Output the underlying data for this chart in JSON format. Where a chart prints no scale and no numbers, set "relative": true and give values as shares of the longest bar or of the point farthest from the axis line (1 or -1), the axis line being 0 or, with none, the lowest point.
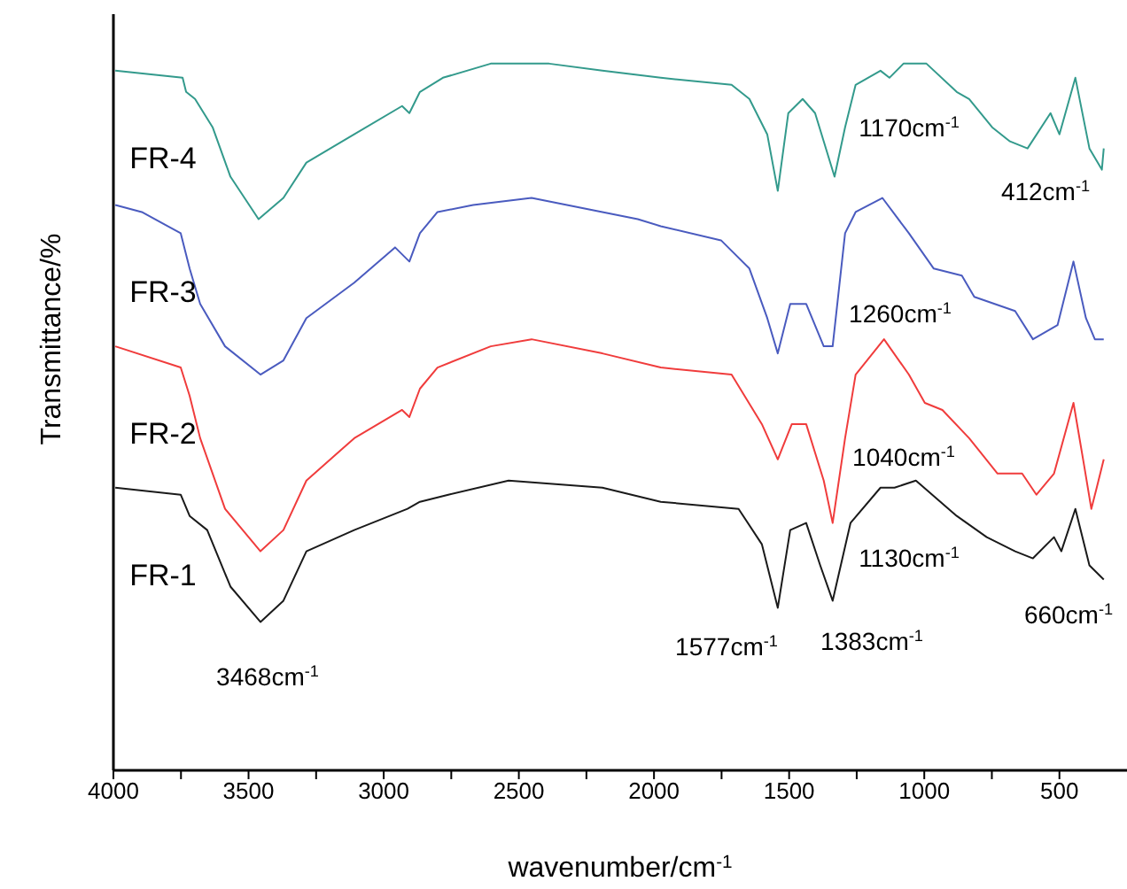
{
  "chart_data": {
    "type": "line",
    "relative": true,
    "xlabel": "wavenumber/cm$^{-1}$",
    "ylabel": "Transmittance/%",
    "xlim": [
      4000,
      250
    ],
    "xticks": [
      4000,
      {
        "value": 3750,
        "label": null
      },
      3500,
      {
        "value": 3250,
        "label": null
      },
      3000,
      {
        "value": 2750,
        "label": null
      },
      2500,
      {
        "value": 2250,
        "label": null
      },
      2000,
      {
        "value": 1750,
        "label": null
      },
      1500,
      {
        "value": 1250,
        "label": null
      },
      1000,
      {
        "value": 750,
        "label": null
      },
      500
    ],
    "series": [
      {
        "name": "FR-4",
        "color": "#339a8c",
        "x": [
          3993,
          3744,
          3731,
          3698,
          3633,
          3567,
          3463,
          3371,
          3286,
          3109,
          2932,
          2905,
          2866,
          2781,
          2604,
          2388,
          2191,
          1975,
          1713,
          1647,
          1581,
          1542,
          1503,
          1450,
          1404,
          1332,
          1293,
          1254,
          1162,
          1129,
          1077,
          992,
          880,
          834,
          749,
          683,
          618,
          533,
          500,
          441,
          389,
          343,
          336
        ],
        "values": [
          0.99,
          0.98,
          0.96,
          0.95,
          0.91,
          0.84,
          0.78,
          0.81,
          0.86,
          0.9,
          0.94,
          0.93,
          0.96,
          0.98,
          1.0,
          1.0,
          0.99,
          0.98,
          0.97,
          0.95,
          0.9,
          0.82,
          0.93,
          0.95,
          0.93,
          0.84,
          0.91,
          0.97,
          0.99,
          0.98,
          1.0,
          1.0,
          0.96,
          0.95,
          0.91,
          0.89,
          0.88,
          0.93,
          0.9,
          0.98,
          0.88,
          0.85,
          0.88
        ]
      },
      {
        "name": "FR-3",
        "color": "#4a5bbf",
        "x": [
          3993,
          3895,
          3751,
          3718,
          3679,
          3587,
          3456,
          3371,
          3286,
          3109,
          2958,
          2905,
          2866,
          2801,
          2669,
          2453,
          2191,
          2060,
          1975,
          1752,
          1647,
          1581,
          1542,
          1496,
          1437,
          1372,
          1339,
          1293,
          1254,
          1155,
          1057,
          965,
          861,
          815,
          664,
          598,
          507,
          448,
          402,
          369,
          336
        ],
        "values": [
          0.8,
          0.79,
          0.76,
          0.71,
          0.66,
          0.6,
          0.56,
          0.58,
          0.64,
          0.69,
          0.74,
          0.72,
          0.76,
          0.79,
          0.8,
          0.81,
          0.79,
          0.78,
          0.77,
          0.75,
          0.71,
          0.64,
          0.59,
          0.66,
          0.66,
          0.6,
          0.6,
          0.76,
          0.79,
          0.81,
          0.76,
          0.71,
          0.7,
          0.67,
          0.65,
          0.61,
          0.63,
          0.72,
          0.64,
          0.61,
          0.61
        ]
      },
      {
        "name": "FR-2",
        "color": "#f03c3c",
        "x": [
          3993,
          3751,
          3718,
          3679,
          3587,
          3456,
          3371,
          3286,
          3109,
          2932,
          2905,
          2866,
          2801,
          2604,
          2453,
          2191,
          1975,
          1713,
          1601,
          1542,
          1490,
          1437,
          1372,
          1339,
          1293,
          1254,
          1149,
          1057,
          998,
          933,
          834,
          729,
          638,
          585,
          520,
          448,
          408,
          382,
          362,
          336
        ],
        "values": [
          0.6,
          0.57,
          0.53,
          0.47,
          0.37,
          0.31,
          0.34,
          0.41,
          0.47,
          0.51,
          0.5,
          0.54,
          0.57,
          0.6,
          0.61,
          0.59,
          0.57,
          0.56,
          0.49,
          0.44,
          0.49,
          0.49,
          0.41,
          0.35,
          0.47,
          0.56,
          0.61,
          0.56,
          0.52,
          0.51,
          0.47,
          0.42,
          0.42,
          0.39,
          0.42,
          0.52,
          0.43,
          0.37,
          0.4,
          0.44
        ]
      },
      {
        "name": "FR-1",
        "color": "#1a1a1a",
        "x": [
          3993,
          3751,
          3718,
          3653,
          3567,
          3456,
          3371,
          3286,
          3109,
          2912,
          2866,
          2761,
          2538,
          2191,
          1975,
          1687,
          1601,
          1542,
          1496,
          1437,
          1385,
          1339,
          1273,
          1162,
          1110,
          1031,
          880,
          769,
          664,
          598,
          520,
          493,
          441,
          389,
          336
        ],
        "values": [
          0.4,
          0.39,
          0.36,
          0.34,
          0.26,
          0.21,
          0.24,
          0.31,
          0.34,
          0.37,
          0.38,
          0.39,
          0.41,
          0.4,
          0.38,
          0.37,
          0.32,
          0.23,
          0.34,
          0.35,
          0.29,
          0.24,
          0.35,
          0.4,
          0.4,
          0.41,
          0.36,
          0.33,
          0.31,
          0.3,
          0.33,
          0.31,
          0.37,
          0.29,
          0.27
        ]
      }
    ],
    "annotations": [
      "3468cm$^{-1}$",
      "1577cm$^{-1}$",
      "1383cm$^{-1}$",
      "1130cm$^{-1}$",
      "660cm$^{-1}$",
      "1040cm$^{-1}$",
      "1260cm$^{-1}$",
      "1170cm$^{-1}$",
      "412cm$^{-1}$"
    ]
  }
}
